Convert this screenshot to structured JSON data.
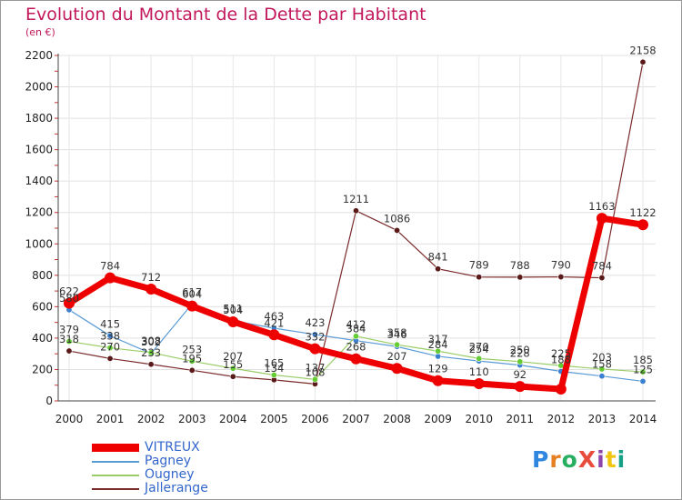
{
  "title": "Evolution du Montant de la Dette par Habitant",
  "subtitle": "(en €)",
  "logo": {
    "text": "ProXiti",
    "colors": [
      "#2e86de",
      "#e67e22",
      "#27ae60",
      "#e74c3c",
      "#8e44ad",
      "#f1c40f",
      "#16a085"
    ]
  },
  "chart_data": {
    "type": "line",
    "x": [
      "2000",
      "2001",
      "2002",
      "2003",
      "2004",
      "2005",
      "2006",
      "2007",
      "2008",
      "2009",
      "2010",
      "2011",
      "2012",
      "2013",
      "2014"
    ],
    "yticks": [
      "0",
      "200",
      "400",
      "600",
      "800",
      "1000",
      "1200",
      "1400",
      "1600",
      "1800",
      "2000",
      "2200"
    ],
    "ylim": [
      0,
      2200
    ],
    "grid": true,
    "legend_position": "bottom-left",
    "series": [
      {
        "name": "VITREUX",
        "color": "#ee0000",
        "width": 7,
        "marker": "#ee0000",
        "values": [
          622,
          784,
          712,
          604,
          504,
          421,
          332,
          268,
          207,
          129,
          110,
          92,
          75,
          1163,
          1122
        ],
        "labels": [
          "622",
          "784",
          "712",
          "604",
          "504",
          "421",
          "332",
          "268",
          "207",
          "129",
          "110",
          "92",
          "",
          "1163",
          "1122"
        ]
      },
      {
        "name": "Pagney",
        "color": "#5b9bd5",
        "width": 1.2,
        "marker": "#3a7fd0",
        "values": [
          580,
          415,
          302,
          617,
          511,
          463,
          423,
          384,
          346,
          284,
          254,
          228,
          188,
          158,
          125
        ],
        "labels": [
          "580",
          "415",
          "302",
          "617",
          "511",
          "463",
          "423",
          "384",
          "346",
          "284",
          "254",
          "228",
          "188",
          "158",
          "125"
        ]
      },
      {
        "name": "Ougney",
        "color": "#99cc66",
        "width": 1.2,
        "marker": "#66cc33",
        "values": [
          379,
          338,
          308,
          253,
          207,
          165,
          137,
          412,
          358,
          317,
          270,
          250,
          225,
          203,
          185
        ],
        "labels": [
          "379",
          "338",
          "308",
          "253",
          "207",
          "165",
          "137",
          "412",
          "358",
          "317",
          "270",
          "250",
          "225",
          "203",
          "185"
        ]
      },
      {
        "name": "Jallerange",
        "color": "#7b2a2a",
        "width": 1.2,
        "marker": "#5a1a1a",
        "values": [
          318,
          270,
          233,
          195,
          155,
          134,
          108,
          1211,
          1086,
          841,
          789,
          788,
          790,
          784,
          2158
        ],
        "labels": [
          "318",
          "270",
          "233",
          "195",
          "155",
          "134",
          "108",
          "1211",
          "1086",
          "841",
          "789",
          "788",
          "790",
          "784",
          "2158"
        ]
      }
    ]
  }
}
